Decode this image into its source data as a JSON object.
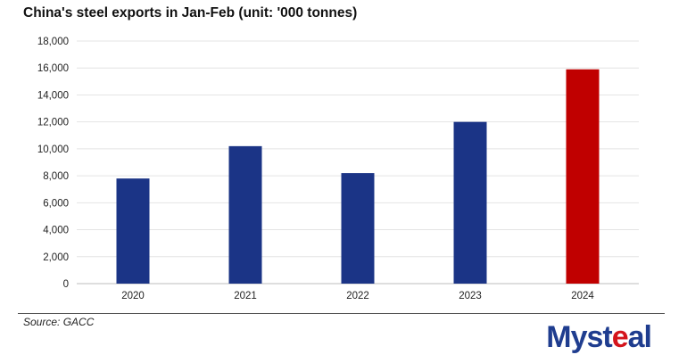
{
  "chart_data": {
    "type": "bar",
    "title": "China's steel exports in Jan-Feb (unit: '000 tonnes)",
    "categories": [
      "2020",
      "2021",
      "2022",
      "2023",
      "2024"
    ],
    "values": [
      7800,
      10200,
      8200,
      12000,
      15900
    ],
    "bar_colors": [
      "#1b3486",
      "#1b3486",
      "#1b3486",
      "#1b3486",
      "#c00000"
    ],
    "ylim": [
      0,
      18000
    ],
    "yticks": [
      0,
      2000,
      4000,
      6000,
      8000,
      10000,
      12000,
      14000,
      16000,
      18000
    ],
    "ytick_labels": [
      "0",
      "2,000",
      "4,000",
      "6,000",
      "8,000",
      "10,000",
      "12,000",
      "14,000",
      "16,000",
      "18,000"
    ],
    "grid": true
  },
  "source": "Source: GACC",
  "logo": {
    "main": "Myst",
    "accent": "e",
    "rest": "al"
  }
}
